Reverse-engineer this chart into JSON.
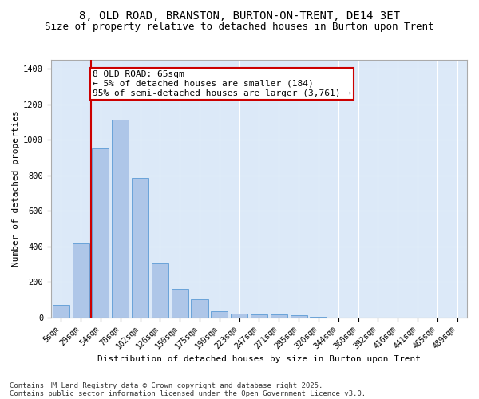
{
  "title_line1": "8, OLD ROAD, BRANSTON, BURTON-ON-TRENT, DE14 3ET",
  "title_line2": "Size of property relative to detached houses in Burton upon Trent",
  "xlabel": "Distribution of detached houses by size in Burton upon Trent",
  "ylabel": "Number of detached properties",
  "categories": [
    "5sqm",
    "29sqm",
    "54sqm",
    "78sqm",
    "102sqm",
    "126sqm",
    "150sqm",
    "175sqm",
    "199sqm",
    "223sqm",
    "247sqm",
    "271sqm",
    "295sqm",
    "320sqm",
    "344sqm",
    "368sqm",
    "392sqm",
    "416sqm",
    "441sqm",
    "465sqm",
    "489sqm"
  ],
  "values": [
    70,
    415,
    950,
    1115,
    785,
    305,
    160,
    100,
    35,
    20,
    17,
    15,
    10,
    5,
    0,
    0,
    0,
    0,
    0,
    0,
    0
  ],
  "bar_color": "#aec6e8",
  "bar_edge_color": "#5b9bd5",
  "red_line_x": 1.5,
  "annotation_text": "8 OLD ROAD: 65sqm\n← 5% of detached houses are smaller (184)\n95% of semi-detached houses are larger (3,761) →",
  "annotation_box_color": "#ffffff",
  "annotation_box_edge_color": "#cc0000",
  "ylim": [
    0,
    1450
  ],
  "yticks": [
    0,
    200,
    400,
    600,
    800,
    1000,
    1200,
    1400
  ],
  "background_color": "#dce9f8",
  "grid_color": "#ffffff",
  "fig_background": "#ffffff",
  "footer_line1": "Contains HM Land Registry data © Crown copyright and database right 2025.",
  "footer_line2": "Contains public sector information licensed under the Open Government Licence v3.0.",
  "title_fontsize": 10,
  "subtitle_fontsize": 9,
  "axis_label_fontsize": 8,
  "tick_fontsize": 7,
  "annotation_fontsize": 8,
  "footer_fontsize": 6.5
}
